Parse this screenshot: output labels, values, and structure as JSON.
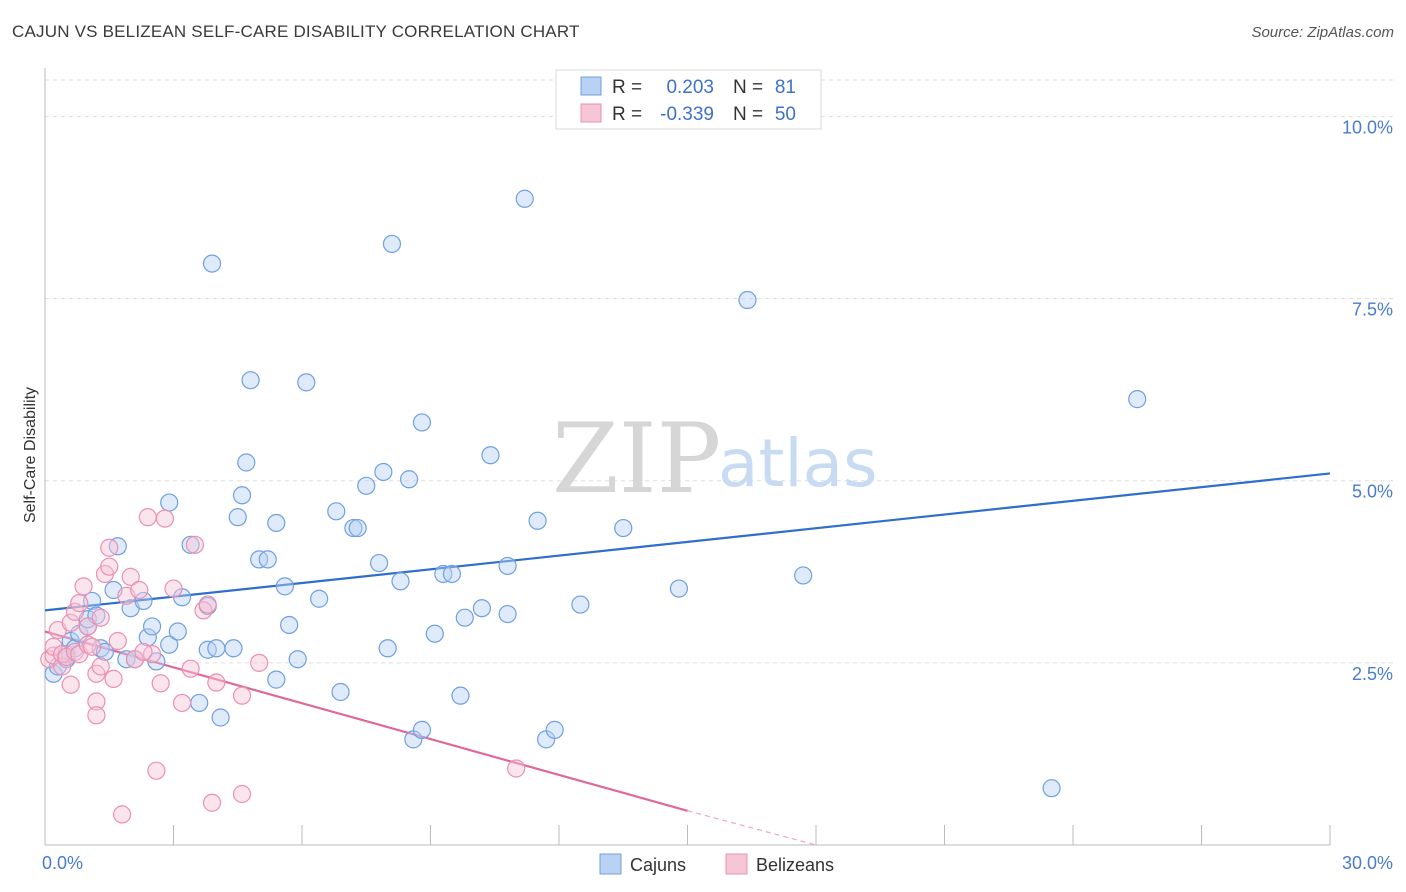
{
  "title": "CAJUN VS BELIZEAN SELF-CARE DISABILITY CORRELATION CHART",
  "source": "Source: ZipAtlas.com",
  "watermark": {
    "zip": "ZIP",
    "atlas": "atlas"
  },
  "chart_data": {
    "type": "scatter",
    "ylabel": "Self-Care Disability",
    "xlim": [
      0,
      30
    ],
    "ylim": [
      0,
      10.5
    ],
    "x_tick_labels": [
      {
        "value": 0,
        "label": "0.0%"
      },
      {
        "value": 30,
        "label": "30.0%"
      }
    ],
    "y_tick_labels": [
      {
        "value": 2.5,
        "label": "2.5%"
      },
      {
        "value": 5.0,
        "label": "5.0%"
      },
      {
        "value": 7.5,
        "label": "7.5%"
      },
      {
        "value": 10.0,
        "label": "10.0%"
      }
    ],
    "legend": [
      {
        "name": "Cajuns",
        "r_label": "R =",
        "r": "0.203",
        "n_label": "N =",
        "n": "81",
        "color": "#6fa0e0",
        "fill": "#b9d1f3"
      },
      {
        "name": "Belizeans",
        "r_label": "R =",
        "r": "-0.339",
        "n_label": "N =",
        "n": "50",
        "color": "#ec8fb0",
        "fill": "#f6c5d6"
      }
    ],
    "series": [
      {
        "name": "Cajuns",
        "color": "#6fa0e0",
        "trend": {
          "x0": 0,
          "y0": 3.22,
          "x1": 30,
          "y1": 5.1,
          "color": "#2f6ecb"
        },
        "points": [
          [
            0.2,
            2.35
          ],
          [
            0.3,
            2.45
          ],
          [
            0.5,
            2.55
          ],
          [
            0.5,
            2.62
          ],
          [
            0.6,
            2.8
          ],
          [
            0.7,
            2.7
          ],
          [
            0.8,
            2.9
          ],
          [
            1.0,
            3.0
          ],
          [
            1.0,
            3.1
          ],
          [
            1.1,
            3.35
          ],
          [
            1.2,
            3.15
          ],
          [
            1.3,
            2.7
          ],
          [
            1.4,
            2.65
          ],
          [
            1.6,
            3.5
          ],
          [
            1.7,
            4.1
          ],
          [
            1.9,
            2.55
          ],
          [
            2.0,
            3.25
          ],
          [
            2.1,
            2.55
          ],
          [
            2.3,
            3.35
          ],
          [
            2.4,
            2.85
          ],
          [
            2.5,
            3.0
          ],
          [
            2.6,
            2.52
          ],
          [
            2.9,
            2.75
          ],
          [
            2.9,
            4.7
          ],
          [
            3.1,
            2.93
          ],
          [
            3.2,
            3.4
          ],
          [
            3.4,
            4.12
          ],
          [
            3.6,
            1.95
          ],
          [
            3.8,
            3.28
          ],
          [
            3.8,
            2.68
          ],
          [
            3.9,
            7.98
          ],
          [
            4.0,
            2.7
          ],
          [
            4.1,
            1.75
          ],
          [
            4.4,
            2.7
          ],
          [
            4.5,
            4.5
          ],
          [
            4.6,
            4.8
          ],
          [
            4.7,
            5.25
          ],
          [
            4.8,
            6.38
          ],
          [
            5.0,
            3.92
          ],
          [
            5.2,
            3.92
          ],
          [
            5.4,
            2.27
          ],
          [
            5.4,
            4.42
          ],
          [
            5.6,
            3.55
          ],
          [
            5.7,
            3.02
          ],
          [
            5.9,
            2.55
          ],
          [
            6.1,
            6.35
          ],
          [
            6.4,
            3.38
          ],
          [
            6.8,
            4.58
          ],
          [
            6.9,
            2.1
          ],
          [
            7.2,
            4.35
          ],
          [
            7.3,
            4.35
          ],
          [
            7.5,
            4.93
          ],
          [
            7.8,
            3.87
          ],
          [
            7.9,
            5.12
          ],
          [
            8.0,
            2.7
          ],
          [
            8.1,
            8.25
          ],
          [
            8.3,
            3.62
          ],
          [
            8.5,
            5.02
          ],
          [
            8.6,
            1.45
          ],
          [
            8.8,
            5.8
          ],
          [
            8.8,
            1.58
          ],
          [
            9.1,
            2.9
          ],
          [
            9.3,
            3.72
          ],
          [
            9.5,
            3.72
          ],
          [
            9.7,
            2.05
          ],
          [
            9.8,
            3.12
          ],
          [
            10.2,
            3.25
          ],
          [
            10.4,
            5.35
          ],
          [
            10.8,
            3.17
          ],
          [
            10.8,
            3.83
          ],
          [
            11.2,
            8.87
          ],
          [
            11.5,
            4.45
          ],
          [
            11.7,
            1.45
          ],
          [
            11.9,
            1.58
          ],
          [
            12.5,
            3.3
          ],
          [
            13.5,
            4.35
          ],
          [
            14.8,
            3.52
          ],
          [
            16.4,
            7.48
          ],
          [
            17.7,
            3.7
          ],
          [
            23.5,
            0.78
          ],
          [
            25.5,
            6.12
          ]
        ]
      },
      {
        "name": "Belizeans",
        "color": "#ec8fb0",
        "trend": {
          "x0": 0,
          "y0": 2.93,
          "x1": 15.0,
          "y1": 0.47,
          "color": "#e0679a"
        },
        "trend_dashed": {
          "x0": 15.0,
          "y0": 0.47,
          "x1": 18.0,
          "y1": 0.0
        },
        "points": [
          [
            0.1,
            2.55
          ],
          [
            0.2,
            2.6
          ],
          [
            0.2,
            2.72
          ],
          [
            0.3,
            2.95
          ],
          [
            0.4,
            2.45
          ],
          [
            0.4,
            2.62
          ],
          [
            0.5,
            2.58
          ],
          [
            0.6,
            2.2
          ],
          [
            0.6,
            3.05
          ],
          [
            0.7,
            3.2
          ],
          [
            0.7,
            2.65
          ],
          [
            0.8,
            3.32
          ],
          [
            0.8,
            2.62
          ],
          [
            0.9,
            3.55
          ],
          [
            1.0,
            2.75
          ],
          [
            1.0,
            3.0
          ],
          [
            1.1,
            2.72
          ],
          [
            1.2,
            2.35
          ],
          [
            1.2,
            1.97
          ],
          [
            1.2,
            1.78
          ],
          [
            1.3,
            3.12
          ],
          [
            1.4,
            3.72
          ],
          [
            1.5,
            3.82
          ],
          [
            1.5,
            4.08
          ],
          [
            1.6,
            2.28
          ],
          [
            1.7,
            2.8
          ],
          [
            1.8,
            0.42
          ],
          [
            1.9,
            3.42
          ],
          [
            2.0,
            3.68
          ],
          [
            2.1,
            2.55
          ],
          [
            2.2,
            3.5
          ],
          [
            2.4,
            4.5
          ],
          [
            2.5,
            2.62
          ],
          [
            2.6,
            1.02
          ],
          [
            2.7,
            2.22
          ],
          [
            2.8,
            4.48
          ],
          [
            3.0,
            3.52
          ],
          [
            3.2,
            1.95
          ],
          [
            3.4,
            2.42
          ],
          [
            3.5,
            4.12
          ],
          [
            3.7,
            3.22
          ],
          [
            3.8,
            3.3
          ],
          [
            3.9,
            0.58
          ],
          [
            4.0,
            2.23
          ],
          [
            4.6,
            0.7
          ],
          [
            4.6,
            2.05
          ],
          [
            5.0,
            2.5
          ],
          [
            11.0,
            1.05
          ],
          [
            1.3,
            2.45
          ],
          [
            2.3,
            2.65
          ]
        ]
      }
    ]
  }
}
